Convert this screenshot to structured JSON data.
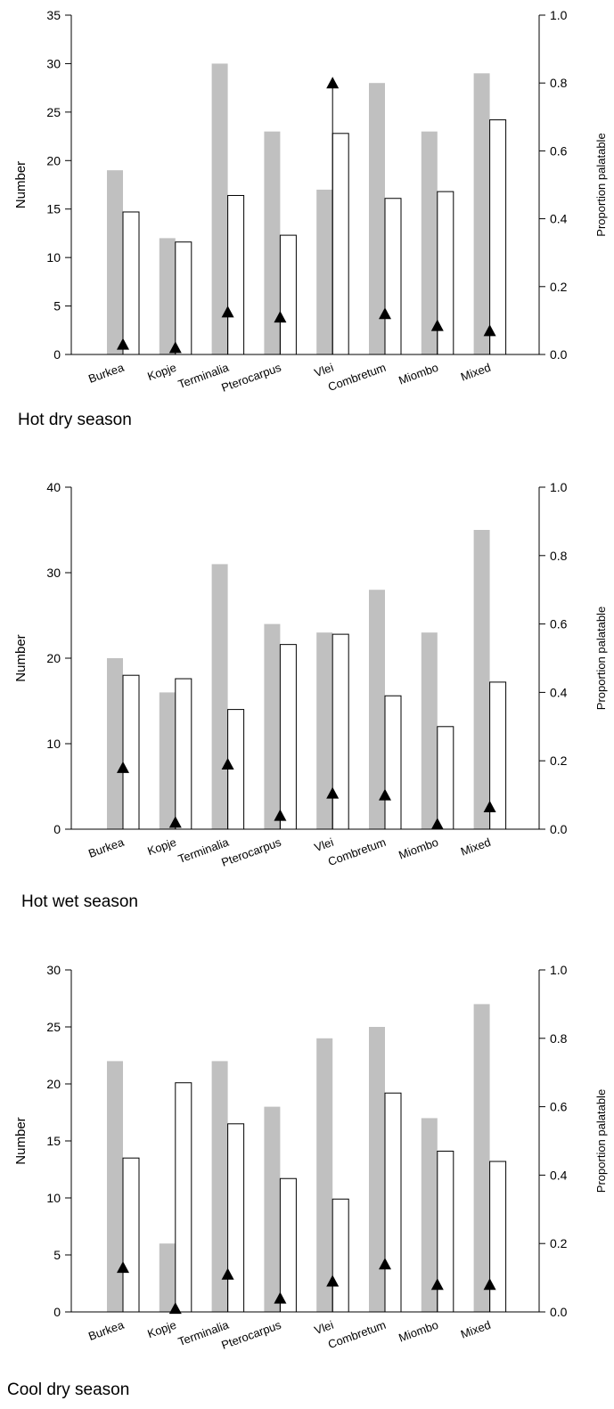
{
  "chart_data": [
    {
      "type": "bar",
      "caption": "Hot dry season",
      "categories": [
        "Burkea",
        "Kopje",
        "Terminalia",
        "Pterocarpus",
        "Vlei",
        "Combretum",
        "Miombo",
        "Mixed"
      ],
      "series": [
        {
          "axis": "left",
          "style": "grey-bar",
          "values": [
            19,
            12,
            30,
            23,
            17,
            28,
            23,
            29
          ]
        },
        {
          "axis": "left",
          "style": "white-bar",
          "values": [
            14.7,
            11.6,
            16.4,
            12.3,
            22.8,
            16.1,
            16.8,
            24.2
          ]
        },
        {
          "axis": "right",
          "style": "triangle",
          "values": [
            0.03,
            0.02,
            0.125,
            0.11,
            0.8,
            0.12,
            0.085,
            0.07
          ]
        }
      ],
      "ylabel": "Number",
      "y2label": "Proportion palatable",
      "ylim": [
        0,
        35
      ],
      "yticks": [
        0,
        5,
        10,
        15,
        20,
        25,
        30,
        35
      ],
      "y2lim": [
        0,
        1.0
      ],
      "y2ticks": [
        "0.0",
        "0.2",
        "0.4",
        "0.6",
        "0.8",
        "1.0"
      ]
    },
    {
      "type": "bar",
      "caption": "Hot wet season",
      "categories": [
        "Burkea",
        "Kopje",
        "Terminalia",
        "Pterocarpus",
        "Vlei",
        "Combretum",
        "Miombo",
        "Mixed"
      ],
      "series": [
        {
          "axis": "left",
          "style": "grey-bar",
          "values": [
            20,
            16,
            31,
            24,
            23,
            28,
            23,
            35
          ]
        },
        {
          "axis": "left",
          "style": "white-bar",
          "values": [
            18,
            17.6,
            14,
            21.6,
            22.8,
            15.6,
            12,
            17.2
          ]
        },
        {
          "axis": "right",
          "style": "triangle",
          "values": [
            0.18,
            0.02,
            0.19,
            0.04,
            0.105,
            0.1,
            0.015,
            0.065
          ]
        }
      ],
      "ylabel": "Number",
      "y2label": "Proportion palatable",
      "ylim": [
        0,
        40
      ],
      "yticks": [
        0,
        10,
        20,
        30,
        40
      ],
      "y2lim": [
        0,
        1.0
      ],
      "y2ticks": [
        "0.0",
        "0.2",
        "0.4",
        "0.6",
        "0.8",
        "1.0"
      ]
    },
    {
      "type": "bar",
      "caption": "Cool dry season",
      "categories": [
        "Burkea",
        "Kopje",
        "Terminalia",
        "Pterocarpus",
        "Vlei",
        "Combretum",
        "Miombo",
        "Mixed"
      ],
      "series": [
        {
          "axis": "left",
          "style": "grey-bar",
          "values": [
            22,
            6,
            22,
            18,
            24,
            25,
            17,
            27
          ]
        },
        {
          "axis": "left",
          "style": "white-bar",
          "values": [
            13.5,
            20.1,
            16.5,
            11.7,
            9.9,
            19.2,
            14.1,
            13.2
          ]
        },
        {
          "axis": "right",
          "style": "triangle",
          "values": [
            0.13,
            0.01,
            0.11,
            0.04,
            0.09,
            0.14,
            0.08,
            0.08
          ]
        }
      ],
      "ylabel": "Number",
      "y2label": "Proportion palatable",
      "ylim": [
        0,
        30
      ],
      "yticks": [
        0,
        5,
        10,
        15,
        20,
        25,
        30
      ],
      "y2lim": [
        0,
        1.0
      ],
      "y2ticks": [
        "0.0",
        "0.2",
        "0.4",
        "0.6",
        "0.8",
        "1.0"
      ]
    }
  ]
}
